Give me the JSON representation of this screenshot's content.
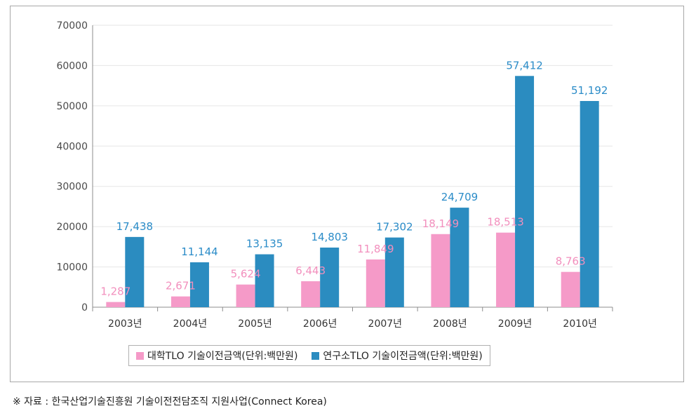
{
  "chart_data": {
    "type": "bar",
    "categories": [
      "2003년",
      "2004년",
      "2005년",
      "2006년",
      "2007년",
      "2008년",
      "2009년",
      "2010년"
    ],
    "series": [
      {
        "name": "대학TLO 기술이전금액(단위:백만원)",
        "values": [
          1287,
          2671,
          5624,
          6443,
          11849,
          18149,
          18513,
          8763
        ],
        "labels": [
          "1,287",
          "2,671",
          "5,624",
          "6,443",
          "11,849",
          "18,149",
          "18,513",
          "8,763"
        ],
        "color": "#f59ac8",
        "label_color": "#f28fbd"
      },
      {
        "name": "연구소TLO 기술이전금액(단위:백만원)",
        "values": [
          17438,
          11144,
          13135,
          14803,
          17302,
          24709,
          57412,
          51192
        ],
        "labels": [
          "17,438",
          "11,144",
          "13,135",
          "14,803",
          "17,302",
          "24,709",
          "57,412",
          "51,192"
        ],
        "color": "#2b8cc0",
        "label_color": "#2b8cc8"
      }
    ],
    "yticks": [
      "0",
      "10000",
      "20000",
      "30000",
      "40000",
      "50000",
      "60000",
      "70000"
    ],
    "ylim": [
      0,
      70000
    ],
    "grid": true,
    "legend_position": "bottom"
  },
  "source_note": "※ 자료 : 한국산업기술진흥원 기술이전전담조직 지원사업(Connect Korea)"
}
